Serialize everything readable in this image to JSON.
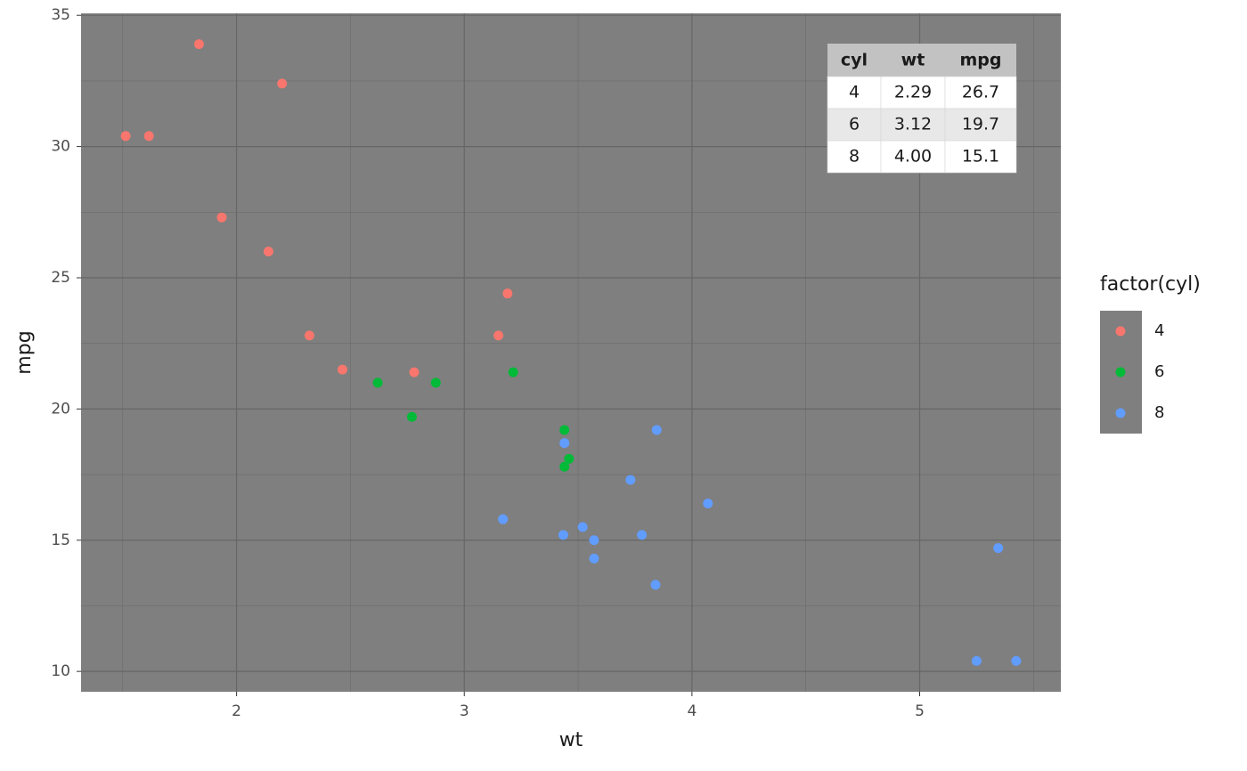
{
  "chart_data": {
    "type": "scatter",
    "x_label": "wt",
    "y_label": "mpg",
    "legend_title": "factor(cyl)",
    "legend_position": "right",
    "xlim": [
      1.317,
      5.62
    ],
    "xticks": [
      2,
      3,
      4,
      5
    ],
    "ylim": [
      9.225,
      35.075
    ],
    "yticks": [
      10,
      15,
      20,
      25,
      30,
      35
    ],
    "grid": true,
    "panel_color": "#7f7f7f",
    "series": [
      {
        "name": "4",
        "color": "#F8766D",
        "x": [
          2.32,
          3.19,
          3.15,
          2.2,
          1.615,
          1.835,
          2.465,
          1.935,
          2.14,
          1.513,
          2.78
        ],
        "values": [
          22.8,
          24.4,
          22.8,
          32.4,
          30.4,
          33.9,
          21.5,
          27.3,
          26.0,
          30.4,
          21.4
        ]
      },
      {
        "name": "6",
        "color": "#00BA38",
        "x": [
          2.62,
          2.875,
          3.215,
          3.46,
          3.44,
          3.44,
          2.77
        ],
        "values": [
          21.0,
          21.0,
          21.4,
          18.1,
          19.2,
          17.8,
          19.7
        ]
      },
      {
        "name": "8",
        "color": "#619CFF",
        "x": [
          3.44,
          3.57,
          4.07,
          3.73,
          3.78,
          5.25,
          5.424,
          5.345,
          3.52,
          3.435,
          3.84,
          3.845,
          3.17,
          3.57
        ],
        "values": [
          18.7,
          14.3,
          16.4,
          17.3,
          15.2,
          10.4,
          10.4,
          14.7,
          15.5,
          15.2,
          13.3,
          19.2,
          15.8,
          15.0
        ]
      }
    ],
    "table": {
      "columns": [
        "cyl",
        "wt",
        "mpg"
      ],
      "rows": [
        [
          "4",
          "2.29",
          "26.7"
        ],
        [
          "6",
          "3.12",
          "19.7"
        ],
        [
          "8",
          "4.00",
          "15.1"
        ]
      ]
    }
  }
}
